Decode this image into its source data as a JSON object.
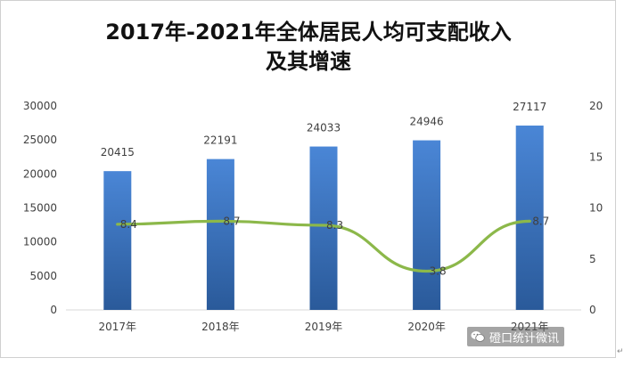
{
  "chart_data": {
    "type": "bar+line",
    "title_lines": [
      "2017年-2021年全体居民人均可支配收入",
      "及其增速"
    ],
    "categories": [
      "2017年",
      "2018年",
      "2019年",
      "2020年",
      "2021年"
    ],
    "series": [
      {
        "values": [
          20415,
          22191,
          24033,
          24946,
          27117
        ],
        "kind": "bar",
        "axis": "left"
      },
      {
        "values": [
          8.4,
          8.7,
          8.3,
          3.8,
          8.7
        ],
        "kind": "line",
        "axis": "right"
      }
    ],
    "bar_labels": [
      "20415",
      "22191",
      "24033",
      "24946",
      "27117"
    ],
    "line_labels": [
      "8.4",
      "8.7",
      "8.3",
      "3.8",
      "8.7"
    ],
    "y_left": {
      "ylim": [
        0,
        30000
      ],
      "ticks": [
        "0",
        "5000",
        "10000",
        "15000",
        "20000",
        "25000",
        "30000"
      ]
    },
    "y_right": {
      "ylim": [
        0,
        20
      ],
      "ticks": [
        "0",
        "5",
        "10",
        "15",
        "20"
      ]
    },
    "grid": false,
    "legend": "none",
    "colors": {
      "bar_top": "#4a86d6",
      "bar_bottom": "#2a5a9a",
      "line": "#8cb84a"
    }
  },
  "watermark": {
    "text": "磴口统计微讯",
    "icon": "wechat-icon"
  },
  "corner_mark": "↵"
}
